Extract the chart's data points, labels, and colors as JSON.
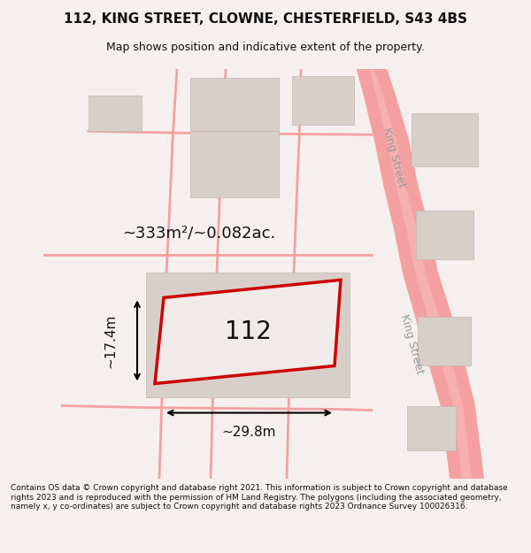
{
  "title_line1": "112, KING STREET, CLOWNE, CHESTERFIELD, S43 4BS",
  "title_line2": "Map shows position and indicative extent of the property.",
  "property_label": "112",
  "area_label": "~333m²/~0.082ac.",
  "width_label": "~29.8m",
  "height_label": "~17.4m",
  "footer_text": "Contains OS data © Crown copyright and database right 2021. This information is subject to Crown copyright and database rights 2023 and is reproduced with the permission of HM Land Registry. The polygons (including the associated geometry, namely x, y co-ordinates) are subject to Crown copyright and database rights 2023 Ordnance Survey 100026316.",
  "bg_color": "#f5f0ee",
  "map_bg": "#ffffff",
  "road_color": "#f5a0a0",
  "building_color": "#d8d0c8",
  "property_fill": "#f0eae8",
  "property_edge": "#cc0000",
  "street_label1": "King Street",
  "street_label2": "King Street"
}
